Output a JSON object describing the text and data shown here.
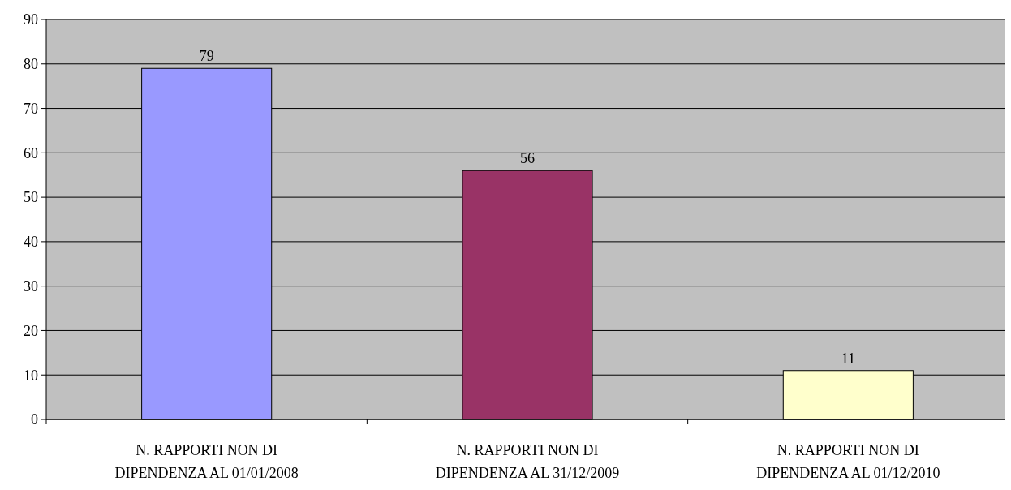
{
  "chart_data": {
    "type": "bar",
    "categories": [
      "N. RAPPORTI NON DI DIPENDENZA AL 01/01/2008",
      "N. RAPPORTI NON DI DIPENDENZA AL 31/12/2009",
      "N. RAPPORTI NON DI DIPENDENZA AL 01/12/2010"
    ],
    "values": [
      79,
      56,
      11
    ],
    "colors": [
      "#9999ff",
      "#993366",
      "#ffffcc"
    ],
    "ylim": [
      0,
      90
    ],
    "yticks": [
      0,
      10,
      20,
      30,
      40,
      50,
      60,
      70,
      80,
      90
    ],
    "grid": "y",
    "data_labels": true
  }
}
